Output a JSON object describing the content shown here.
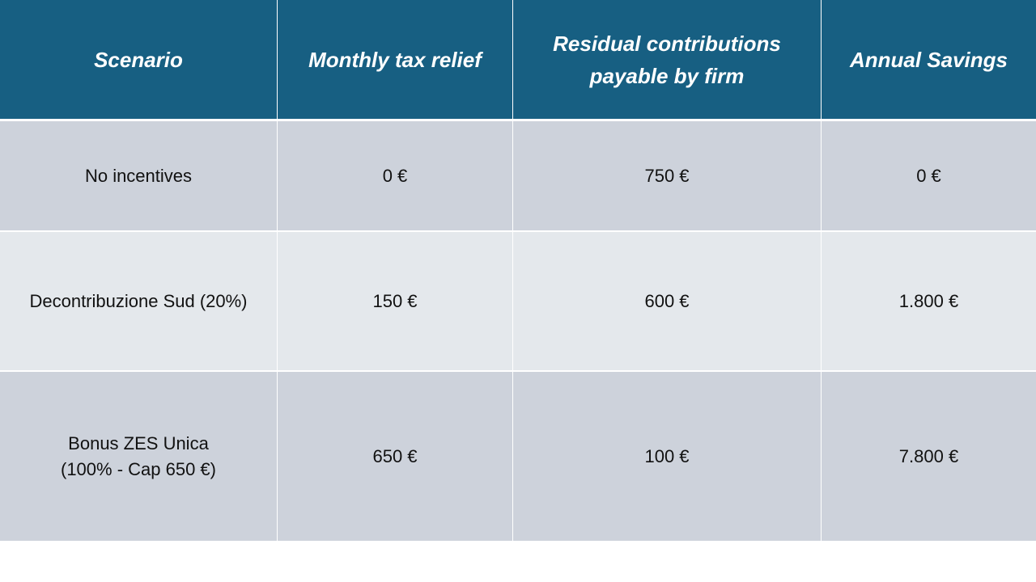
{
  "table": {
    "header": [
      [
        "Scenario"
      ],
      [
        "Monthly tax relief"
      ],
      [
        "Residual contributions",
        "payable by firm"
      ],
      [
        "Annual Savings"
      ]
    ],
    "rows": [
      [
        [
          "No incentives"
        ],
        [
          "0 €"
        ],
        [
          "750 €"
        ],
        [
          "0 €"
        ]
      ],
      [
        [
          "Decontribuzione Sud (20%)"
        ],
        [
          "150 €"
        ],
        [
          "600 €"
        ],
        [
          "1.800 €"
        ]
      ],
      [
        [
          "Bonus ZES Unica",
          "(100% - Cap 650 €)"
        ],
        [
          "650 €"
        ],
        [
          "100 €"
        ],
        [
          "7.800 €"
        ]
      ]
    ]
  }
}
